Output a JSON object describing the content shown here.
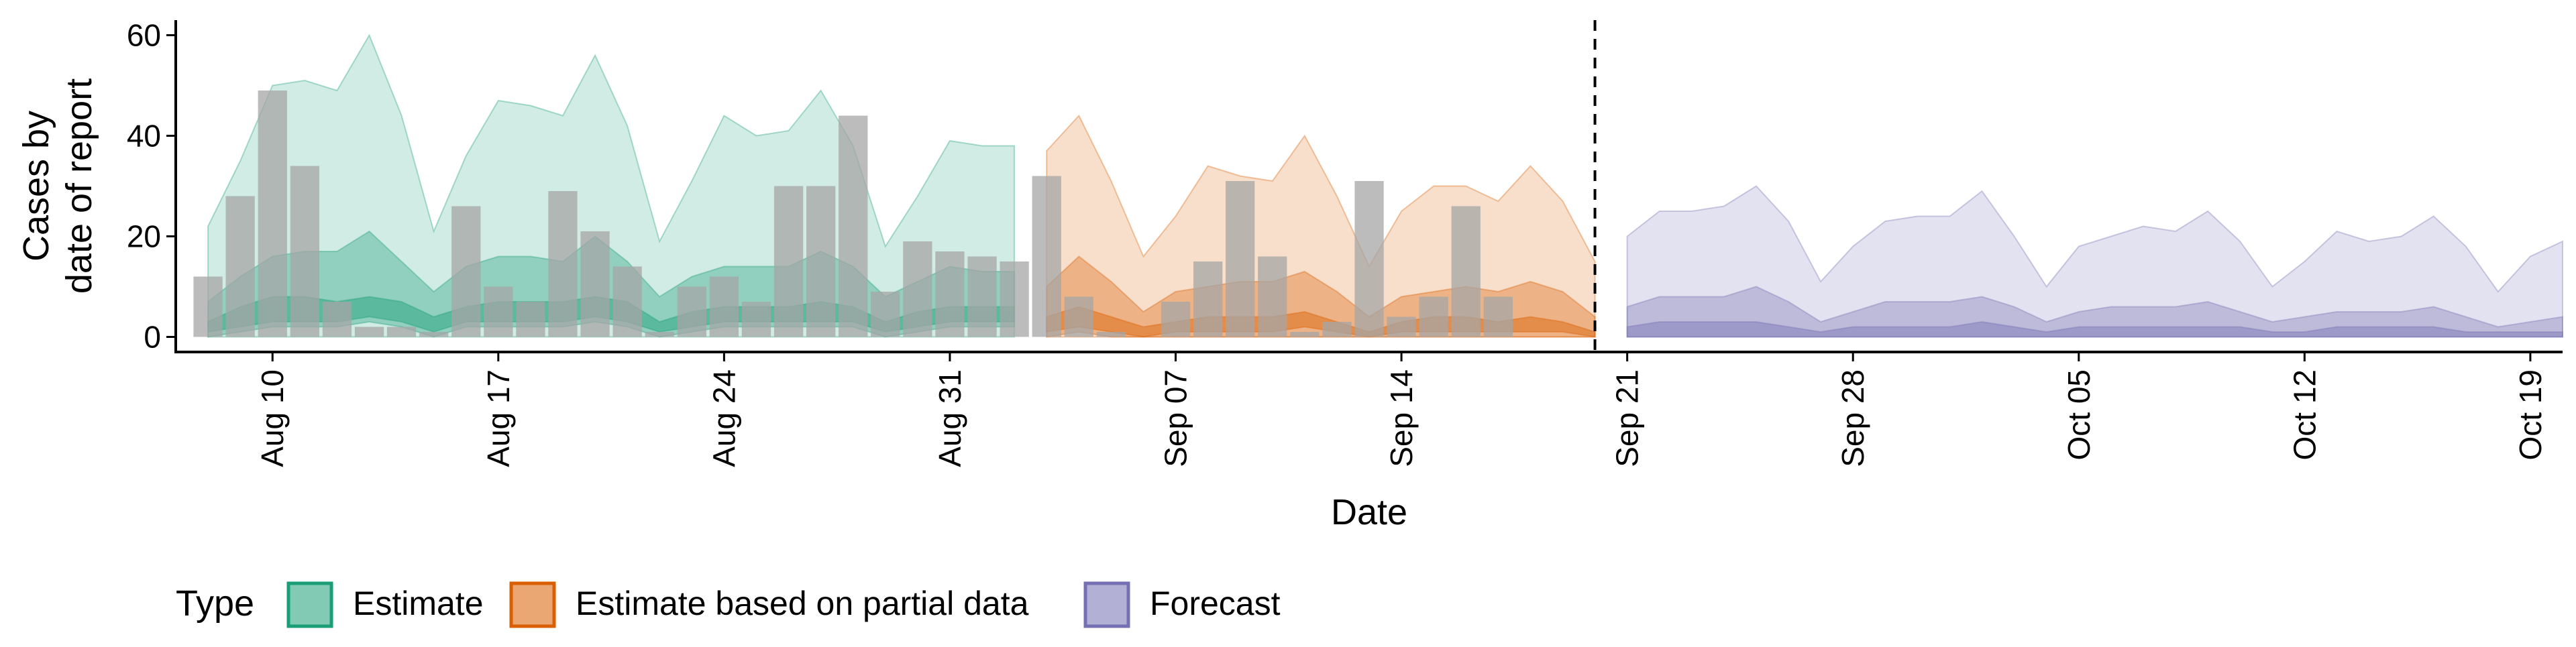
{
  "chart_data": {
    "type": "area",
    "xlabel": "Date",
    "ylabel_lines": [
      "Cases by",
      "date of report"
    ],
    "ylim": [
      -3,
      63
    ],
    "yticks": [
      0,
      20,
      40,
      60
    ],
    "x_start": "2020-08-07",
    "x_end": "2020-10-20",
    "xticks": [
      {
        "date": "2020-08-10",
        "label": "Aug 10"
      },
      {
        "date": "2020-08-17",
        "label": "Aug 17"
      },
      {
        "date": "2020-08-24",
        "label": "Aug 24"
      },
      {
        "date": "2020-08-31",
        "label": "Aug 31"
      },
      {
        "date": "2020-09-07",
        "label": "Sep 07"
      },
      {
        "date": "2020-09-14",
        "label": "Sep 14"
      },
      {
        "date": "2020-09-21",
        "label": "Sep 21"
      },
      {
        "date": "2020-09-28",
        "label": "Sep 28"
      },
      {
        "date": "2020-10-05",
        "label": "Oct 05"
      },
      {
        "date": "2020-10-12",
        "label": "Oct 12"
      },
      {
        "date": "2020-10-19",
        "label": "Oct 19"
      }
    ],
    "vline_date": "2020-09-20",
    "legend": {
      "title": "Type",
      "position": "bottom",
      "entries": [
        {
          "label": "Estimate",
          "color": "#1b9e77"
        },
        {
          "label": "Estimate based on partial data",
          "color": "#d95f02"
        },
        {
          "label": "Forecast",
          "color": "#7570b3"
        }
      ]
    },
    "bars": {
      "color": "#a6a6a6",
      "dates": [
        "2020-08-08",
        "2020-08-09",
        "2020-08-10",
        "2020-08-11",
        "2020-08-12",
        "2020-08-13",
        "2020-08-14",
        "2020-08-15",
        "2020-08-16",
        "2020-08-17",
        "2020-08-18",
        "2020-08-19",
        "2020-08-20",
        "2020-08-21",
        "2020-08-22",
        "2020-08-23",
        "2020-08-24",
        "2020-08-25",
        "2020-08-26",
        "2020-08-27",
        "2020-08-28",
        "2020-08-29",
        "2020-08-30",
        "2020-08-31",
        "2020-09-01",
        "2020-09-02",
        "2020-09-03",
        "2020-09-04",
        "2020-09-05",
        "2020-09-06",
        "2020-09-07",
        "2020-09-08",
        "2020-09-09",
        "2020-09-10",
        "2020-09-11",
        "2020-09-12",
        "2020-09-13",
        "2020-09-14",
        "2020-09-15",
        "2020-09-16",
        "2020-09-17",
        "2020-09-18",
        "2020-09-19",
        "2020-09-20"
      ],
      "values": [
        12,
        28,
        49,
        34,
        7,
        2,
        2,
        1,
        26,
        10,
        7,
        29,
        21,
        14,
        1,
        10,
        12,
        7,
        30,
        30,
        44,
        9,
        19,
        17,
        16,
        15,
        32,
        8,
        1,
        0,
        7,
        15,
        31,
        16,
        1,
        3,
        31,
        4,
        8,
        26,
        8,
        0,
        0,
        0
      ]
    },
    "series": [
      {
        "name": "Estimate",
        "color": "#1b9e77",
        "dates": [
          "2020-08-08",
          "2020-08-09",
          "2020-08-10",
          "2020-08-11",
          "2020-08-12",
          "2020-08-13",
          "2020-08-14",
          "2020-08-15",
          "2020-08-16",
          "2020-08-17",
          "2020-08-18",
          "2020-08-19",
          "2020-08-20",
          "2020-08-21",
          "2020-08-22",
          "2020-08-23",
          "2020-08-24",
          "2020-08-25",
          "2020-08-26",
          "2020-08-27",
          "2020-08-28",
          "2020-08-29",
          "2020-08-30",
          "2020-08-31",
          "2020-09-01",
          "2020-09-02"
        ],
        "upper90": [
          22,
          35,
          50,
          51,
          49,
          60,
          44,
          21,
          36,
          47,
          46,
          44,
          56,
          42,
          19,
          31,
          44,
          40,
          41,
          49,
          38,
          18,
          28,
          39,
          38,
          38
        ],
        "lower90": [
          0,
          0,
          0,
          0,
          0,
          0,
          0,
          0,
          0,
          0,
          0,
          0,
          0,
          0,
          0,
          0,
          0,
          0,
          0,
          0,
          0,
          0,
          0,
          0,
          0,
          0
        ],
        "upper50": [
          7,
          12,
          16,
          17,
          17,
          21,
          15,
          9,
          14,
          16,
          16,
          15,
          20,
          15,
          8,
          12,
          14,
          14,
          14,
          17,
          14,
          8,
          11,
          14,
          13,
          13
        ],
        "lower50": [
          0,
          1,
          2,
          2,
          2,
          3,
          2,
          0,
          2,
          2,
          2,
          2,
          3,
          2,
          0,
          1,
          2,
          2,
          2,
          2,
          2,
          0,
          1,
          2,
          2,
          2
        ],
        "upper20": [
          3,
          6,
          8,
          8,
          7,
          8,
          7,
          4,
          6,
          7,
          7,
          7,
          8,
          7,
          3,
          5,
          6,
          6,
          6,
          7,
          6,
          3,
          5,
          6,
          6,
          6
        ],
        "lower20": [
          1,
          2,
          3,
          3,
          3,
          4,
          3,
          1,
          3,
          3,
          3,
          3,
          4,
          3,
          1,
          2,
          3,
          3,
          3,
          3,
          3,
          1,
          2,
          3,
          3,
          3
        ]
      },
      {
        "name": "Estimate based on partial data",
        "color": "#d95f02",
        "dates": [
          "2020-09-03",
          "2020-09-04",
          "2020-09-05",
          "2020-09-06",
          "2020-09-07",
          "2020-09-08",
          "2020-09-09",
          "2020-09-10",
          "2020-09-11",
          "2020-09-12",
          "2020-09-13",
          "2020-09-14",
          "2020-09-15",
          "2020-09-16",
          "2020-09-17",
          "2020-09-18",
          "2020-09-19",
          "2020-09-20"
        ],
        "upper90": [
          37,
          44,
          31,
          16,
          24,
          34,
          32,
          31,
          40,
          28,
          14,
          25,
          30,
          30,
          27,
          34,
          27,
          15
        ],
        "lower90": [
          0,
          0,
          0,
          0,
          0,
          0,
          0,
          0,
          0,
          0,
          0,
          0,
          0,
          0,
          0,
          0,
          0,
          0
        ],
        "upper50": [
          10,
          16,
          11,
          5,
          9,
          10,
          11,
          11,
          13,
          9,
          4,
          8,
          9,
          10,
          9,
          11,
          9,
          4
        ],
        "lower50": [
          0,
          1,
          0,
          0,
          0,
          0,
          0,
          0,
          0,
          0,
          0,
          0,
          0,
          0,
          0,
          0,
          0,
          0
        ],
        "upper20": [
          4,
          6,
          4,
          2,
          3,
          4,
          4,
          4,
          5,
          3,
          1,
          3,
          4,
          4,
          3,
          4,
          3,
          1
        ],
        "lower20": [
          1,
          2,
          1,
          0,
          1,
          1,
          1,
          1,
          2,
          1,
          0,
          1,
          1,
          1,
          1,
          1,
          1,
          0
        ]
      },
      {
        "name": "Forecast",
        "color": "#7570b3",
        "dates": [
          "2020-09-21",
          "2020-09-22",
          "2020-09-23",
          "2020-09-24",
          "2020-09-25",
          "2020-09-26",
          "2020-09-27",
          "2020-09-28",
          "2020-09-29",
          "2020-09-30",
          "2020-10-01",
          "2020-10-02",
          "2020-10-03",
          "2020-10-04",
          "2020-10-05",
          "2020-10-06",
          "2020-10-07",
          "2020-10-08",
          "2020-10-09",
          "2020-10-10",
          "2020-10-11",
          "2020-10-12",
          "2020-10-13",
          "2020-10-14",
          "2020-10-15",
          "2020-10-16",
          "2020-10-17",
          "2020-10-18",
          "2020-10-19",
          "2020-10-20"
        ],
        "upper90": [
          20,
          25,
          25,
          26,
          30,
          23,
          11,
          18,
          23,
          24,
          24,
          29,
          20,
          10,
          18,
          20,
          22,
          21,
          25,
          19,
          10,
          15,
          21,
          19,
          20,
          24,
          18,
          9,
          16,
          19
        ],
        "lower90": [
          0,
          0,
          0,
          0,
          0,
          0,
          0,
          0,
          0,
          0,
          0,
          0,
          0,
          0,
          0,
          0,
          0,
          0,
          0,
          0,
          0,
          0,
          0,
          0,
          0,
          0,
          0,
          0,
          0,
          0
        ],
        "upper50": [
          6,
          8,
          8,
          8,
          10,
          7,
          3,
          5,
          7,
          7,
          7,
          8,
          6,
          3,
          5,
          6,
          6,
          6,
          7,
          5,
          3,
          4,
          5,
          5,
          5,
          6,
          4,
          2,
          3,
          4
        ],
        "lower50": [
          0,
          0,
          0,
          0,
          0,
          0,
          0,
          0,
          0,
          0,
          0,
          0,
          0,
          0,
          0,
          0,
          0,
          0,
          0,
          0,
          0,
          0,
          0,
          0,
          0,
          0,
          0,
          0,
          0,
          0
        ],
        "upper20": [
          2,
          3,
          3,
          3,
          3,
          2,
          1,
          2,
          2,
          2,
          2,
          3,
          2,
          1,
          2,
          2,
          2,
          2,
          2,
          2,
          1,
          1,
          2,
          2,
          2,
          2,
          1,
          1,
          1,
          1
        ],
        "lower20": [
          0,
          0,
          0,
          0,
          0,
          0,
          0,
          0,
          0,
          0,
          0,
          0,
          0,
          0,
          0,
          0,
          0,
          0,
          0,
          0,
          0,
          0,
          0,
          0,
          0,
          0,
          0,
          0,
          0,
          0
        ]
      }
    ]
  }
}
